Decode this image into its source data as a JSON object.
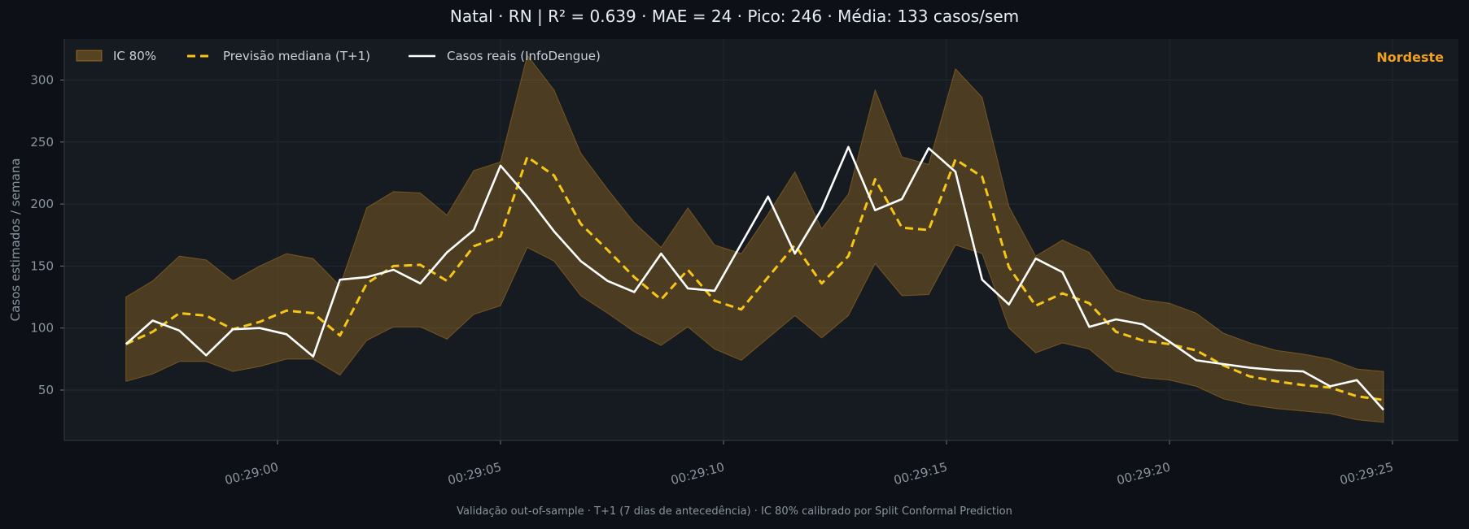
{
  "title": "Natal · RN   |   R² = 0.639  ·  MAE = 24  ·  Pico: 246  ·  Média: 133 casos/sem",
  "footer": "Validação out-of-sample · T+1 (7 dias de antecedência) · IC 80% calibrado por Split Conformal Prediction",
  "colors": {
    "background": "#0d1117",
    "plot_background": "#161b22",
    "band": "#f0a020",
    "forecast": "#f5c518",
    "actual": "#ffffff",
    "region": "#f0a020"
  },
  "chart_data": {
    "type": "line",
    "title": "Natal · RN   |   R² = 0.639  ·  MAE = 24  ·  Pico: 246  ·  Média: 133 casos/sem",
    "xlabel": "",
    "ylabel": "Casos estimados / semana",
    "annotation": "Nordeste",
    "legend_position": "top-left",
    "grid": true,
    "xlim": [
      -3.4,
      26.5
    ],
    "ylim": [
      9,
      334
    ],
    "x_ticks": [
      0,
      5,
      10,
      15,
      20,
      25
    ],
    "x_tick_labels": [
      "00:29:00",
      "00:29:05",
      "00:29:10",
      "00:29:15",
      "00:29:20",
      "00:29:25"
    ],
    "y_ticks": [
      50,
      100,
      150,
      200,
      250,
      300
    ],
    "x": [
      -3.4,
      -2.8,
      -2.2,
      -1.6,
      -1.0,
      -0.4,
      0.2,
      0.8,
      1.4,
      2.0,
      2.6,
      3.2,
      3.8,
      4.4,
      5.0,
      5.6,
      6.2,
      6.8,
      7.4,
      8.0,
      8.6,
      9.2,
      9.8,
      10.4,
      11.0,
      11.6,
      12.2,
      12.8,
      13.4,
      14.0,
      14.6,
      15.2,
      15.8,
      16.4,
      17.0,
      17.6,
      18.2,
      18.8,
      19.4,
      20.0,
      20.6,
      21.2,
      21.8,
      22.4,
      23.0,
      23.6,
      24.2,
      24.8
    ],
    "series": [
      {
        "name": "IC 80%",
        "kind": "band",
        "lower": [
          57,
          63,
          73,
          73,
          65,
          69,
          75,
          75,
          62,
          90,
          101,
          101,
          91,
          111,
          118,
          165,
          154,
          126,
          112,
          97,
          86,
          101,
          83,
          74,
          92,
          110,
          92,
          110,
          152,
          126,
          127,
          167,
          160,
          100,
          80,
          88,
          83,
          65,
          60,
          58,
          53,
          43,
          38,
          35,
          33,
          31,
          26,
          24
        ],
        "upper": [
          125,
          138,
          158,
          155,
          138,
          150,
          160,
          156,
          134,
          197,
          210,
          209,
          191,
          227,
          234,
          320,
          292,
          241,
          212,
          185,
          165,
          197,
          167,
          160,
          192,
          226,
          180,
          208,
          292,
          238,
          232,
          309,
          286,
          198,
          158,
          171,
          161,
          131,
          123,
          120,
          112,
          96,
          88,
          82,
          79,
          75,
          67,
          65
        ]
      },
      {
        "name": "Previsão mediana (T+1)",
        "kind": "line",
        "values": [
          87,
          97,
          112,
          110,
          99,
          105,
          114,
          112,
          94,
          136,
          150,
          151,
          138,
          166,
          174,
          238,
          223,
          184,
          163,
          141,
          123,
          147,
          122,
          115,
          141,
          167,
          136,
          158,
          220,
          181,
          179,
          236,
          222,
          149,
          118,
          128,
          120,
          97,
          90,
          87,
          82,
          70,
          61,
          57,
          54,
          52,
          45,
          42
        ]
      },
      {
        "name": "Casos reais (InfoDengue)",
        "kind": "line",
        "values": [
          87,
          106,
          98,
          78,
          99,
          100,
          95,
          77,
          139,
          141,
          147,
          136,
          161,
          179,
          231,
          206,
          178,
          154,
          138,
          129,
          160,
          132,
          130,
          168,
          206,
          160,
          196,
          246,
          195,
          204,
          245,
          226,
          139,
          119,
          156,
          145,
          101,
          107,
          103,
          89,
          74,
          71,
          68,
          66,
          65,
          53,
          58,
          34
        ]
      }
    ]
  }
}
